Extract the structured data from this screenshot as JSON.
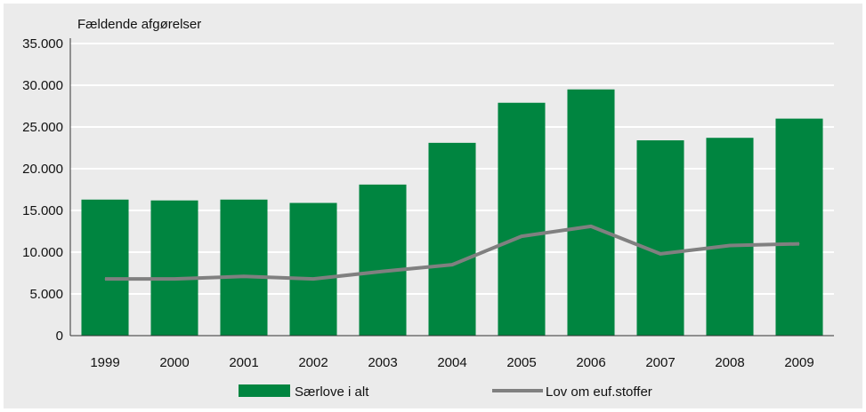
{
  "chart_data": {
    "type": "bar",
    "title": "Fældende afgørelser",
    "xlabel": "",
    "ylabel": "",
    "ylim": [
      0,
      35000
    ],
    "yticks": [
      0,
      5000,
      10000,
      15000,
      20000,
      25000,
      30000,
      35000
    ],
    "ytick_labels": [
      "0",
      "5.000",
      "10.000",
      "15.000",
      "20.000",
      "25.000",
      "30.000",
      "35.000"
    ],
    "categories": [
      "1999",
      "2000",
      "2001",
      "2002",
      "2003",
      "2004",
      "2005",
      "2006",
      "2007",
      "2008",
      "2009"
    ],
    "grid": true,
    "legend_position": "bottom",
    "series": [
      {
        "name": "Særlove i alt",
        "kind": "bar",
        "color": "#008540",
        "values": [
          16300,
          16200,
          16300,
          15900,
          18100,
          23100,
          27900,
          29500,
          23400,
          23700,
          26000
        ]
      },
      {
        "name": "Lov om euf.stoffer",
        "kind": "line",
        "color": "#808080",
        "values": [
          6800,
          6800,
          7100,
          6800,
          7700,
          8500,
          11900,
          13100,
          9800,
          10800,
          11000
        ]
      }
    ]
  }
}
